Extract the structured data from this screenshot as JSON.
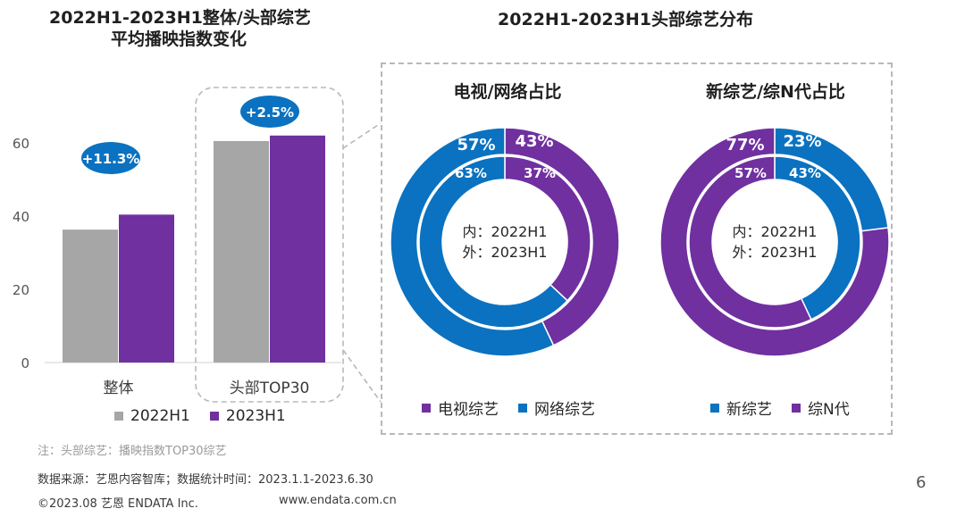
{
  "colors": {
    "gray": "#a6a6a6",
    "purple": "#7030a0",
    "blue": "#0a72c0",
    "bubble": "#0a72c0",
    "dash": "#b8b8b8"
  },
  "left_title": {
    "line1": "2022H1-2023H1整体/头部综艺",
    "line2": "平均播映指数变化"
  },
  "right_title": "2022H1-2023H1头部综艺分布",
  "legend_left": {
    "a": "2022H1",
    "b": "2023H1"
  },
  "donut1": {
    "title": "电视/网络占比",
    "center_line1": "内：2022H1",
    "center_line2": "外：2023H1",
    "legend_a": "电视综艺",
    "legend_b": "网络综艺"
  },
  "donut2": {
    "title": "新综艺/综N代占比",
    "center_line1": "内：2022H1",
    "center_line2": "外：2023H1",
    "legend_a": "新综艺",
    "legend_b": "综N代"
  },
  "footnotes": {
    "note": "注：头部综艺：播映指数TOP30综艺",
    "source": "数据来源：艺恩内容智库；数据统计时间：2023.1.1-2023.6.30",
    "copyright": "©2023.08 艺恩 ENDATA Inc.",
    "url": "www.endata.com.cn"
  },
  "page_number": "6",
  "chart_data": [
    {
      "type": "bar",
      "title": "2022H1-2023H1整体/头部综艺平均播映指数变化",
      "categories": [
        "整体",
        "头部TOP30"
      ],
      "series": [
        {
          "name": "2022H1",
          "values": [
            36.3,
            60.5
          ]
        },
        {
          "name": "2023H1",
          "values": [
            40.4,
            62.0
          ]
        }
      ],
      "ylim": [
        0,
        60
      ],
      "yticks": [
        0,
        20,
        40,
        60
      ],
      "annotations": [
        "+11.3%",
        "+2.5%"
      ],
      "xlabel": "",
      "ylabel": ""
    },
    {
      "type": "pie",
      "title": "电视/网络占比",
      "inner": {
        "label": "2022H1",
        "slices": [
          {
            "name": "电视综艺",
            "value": 37
          },
          {
            "name": "网络综艺",
            "value": 63
          }
        ]
      },
      "outer": {
        "label": "2023H1",
        "slices": [
          {
            "name": "电视综艺",
            "value": 43
          },
          {
            "name": "网络综艺",
            "value": 57
          }
        ]
      },
      "inner_labels": [
        "37%",
        "63%"
      ],
      "outer_labels": [
        "43%",
        "57%"
      ]
    },
    {
      "type": "pie",
      "title": "新综艺/综N代占比",
      "inner": {
        "label": "2022H1",
        "slices": [
          {
            "name": "新综艺",
            "value": 43
          },
          {
            "name": "综N代",
            "value": 57
          }
        ]
      },
      "outer": {
        "label": "2023H1",
        "slices": [
          {
            "name": "新综艺",
            "value": 23
          },
          {
            "name": "综N代",
            "value": 77
          }
        ]
      },
      "inner_labels": [
        "43%",
        "57%"
      ],
      "outer_labels": [
        "23%",
        "77%"
      ]
    }
  ]
}
